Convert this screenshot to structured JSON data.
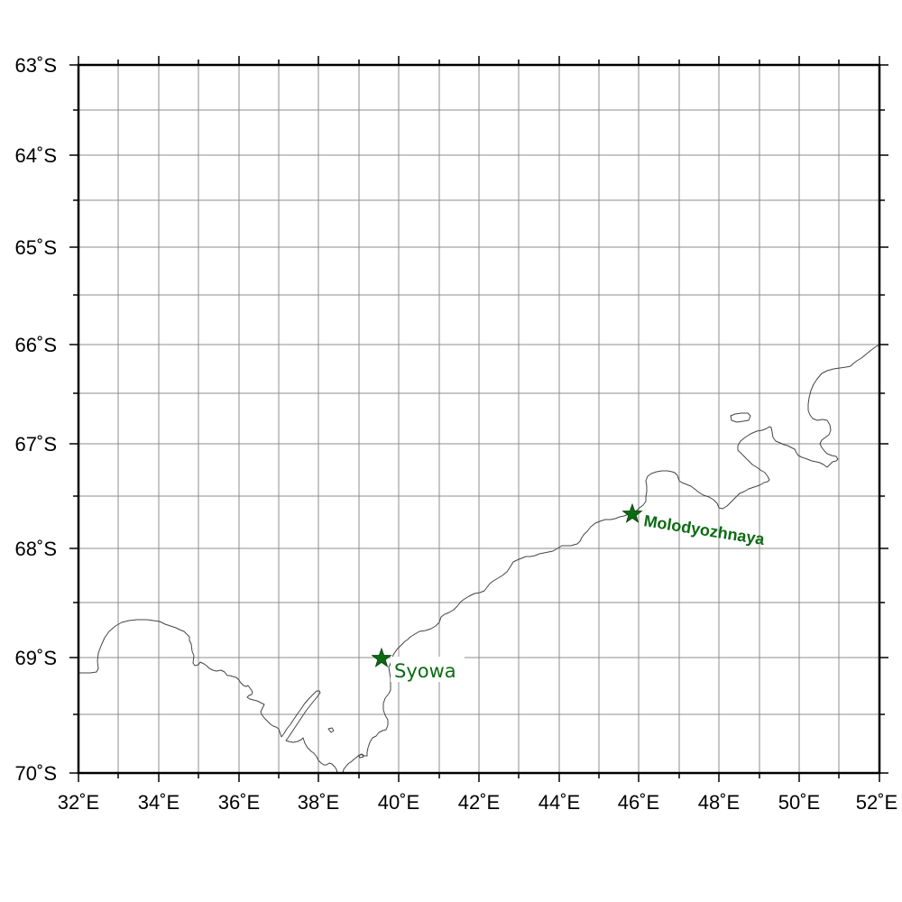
{
  "map": {
    "longitude_labels": [
      "32˚E",
      "34˚E",
      "36˚E",
      "38˚E",
      "40˚E",
      "42˚E",
      "44˚E",
      "46˚E",
      "48˚E",
      "50˚E",
      "52˚E"
    ],
    "latitude_labels": [
      "63˚S",
      "64˚S",
      "65˚S",
      "66˚S",
      "67˚S",
      "68˚S",
      "69˚S",
      "70˚S"
    ],
    "extent": {
      "lon_min": 32,
      "lon_max": 52,
      "lat_min": -70,
      "lat_max": -63
    },
    "stations": [
      {
        "name": "Syowa",
        "lon": 39.58,
        "lat": -69.0
      },
      {
        "name": "Molodyozhnaya",
        "lon": 45.85,
        "lat": -67.67
      }
    ],
    "colors": {
      "station": "#0b6b12",
      "coastline": "#444444",
      "grid": "#8c8c8c",
      "frame": "#000000"
    }
  }
}
